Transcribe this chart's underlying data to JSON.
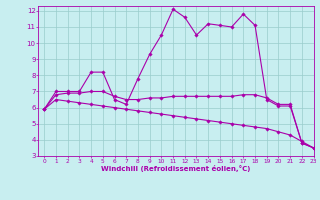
{
  "xlabel": "Windchill (Refroidissement éolien,°C)",
  "ylabel": "",
  "xlim": [
    -0.5,
    23
  ],
  "ylim": [
    3,
    12.3
  ],
  "xticks": [
    0,
    1,
    2,
    3,
    4,
    5,
    6,
    7,
    8,
    9,
    10,
    11,
    12,
    13,
    14,
    15,
    16,
    17,
    18,
    19,
    20,
    21,
    22,
    23
  ],
  "yticks": [
    3,
    4,
    5,
    6,
    7,
    8,
    9,
    10,
    11,
    12
  ],
  "bg_color": "#c8eef0",
  "line_color": "#aa00aa",
  "grid_color": "#99cccc",
  "curves": [
    {
      "x": [
        0,
        1,
        2,
        3,
        4,
        5,
        6,
        7,
        8,
        9,
        10,
        11,
        12,
        13,
        14,
        15,
        16,
        17,
        18,
        19,
        20,
        21,
        22,
        23
      ],
      "y": [
        5.9,
        7.0,
        7.0,
        7.0,
        8.2,
        8.2,
        6.5,
        6.2,
        7.8,
        9.3,
        10.5,
        12.1,
        11.6,
        10.5,
        11.2,
        11.1,
        11.0,
        11.8,
        11.1,
        6.5,
        6.1,
        6.1,
        3.8,
        3.5
      ]
    },
    {
      "x": [
        0,
        1,
        2,
        3,
        4,
        5,
        6,
        7,
        8,
        9,
        10,
        11,
        12,
        13,
        14,
        15,
        16,
        17,
        18,
        19,
        20,
        21,
        22,
        23
      ],
      "y": [
        5.9,
        6.8,
        6.9,
        6.9,
        7.0,
        7.0,
        6.7,
        6.5,
        6.5,
        6.6,
        6.6,
        6.7,
        6.7,
        6.7,
        6.7,
        6.7,
        6.7,
        6.8,
        6.8,
        6.6,
        6.2,
        6.2,
        3.8,
        3.5
      ]
    },
    {
      "x": [
        0,
        1,
        2,
        3,
        4,
        5,
        6,
        7,
        8,
        9,
        10,
        11,
        12,
        13,
        14,
        15,
        16,
        17,
        18,
        19,
        20,
        21,
        22,
        23
      ],
      "y": [
        5.9,
        6.5,
        6.4,
        6.3,
        6.2,
        6.1,
        6.0,
        5.9,
        5.8,
        5.7,
        5.6,
        5.5,
        5.4,
        5.3,
        5.2,
        5.1,
        5.0,
        4.9,
        4.8,
        4.7,
        4.5,
        4.3,
        3.9,
        3.5
      ]
    }
  ]
}
